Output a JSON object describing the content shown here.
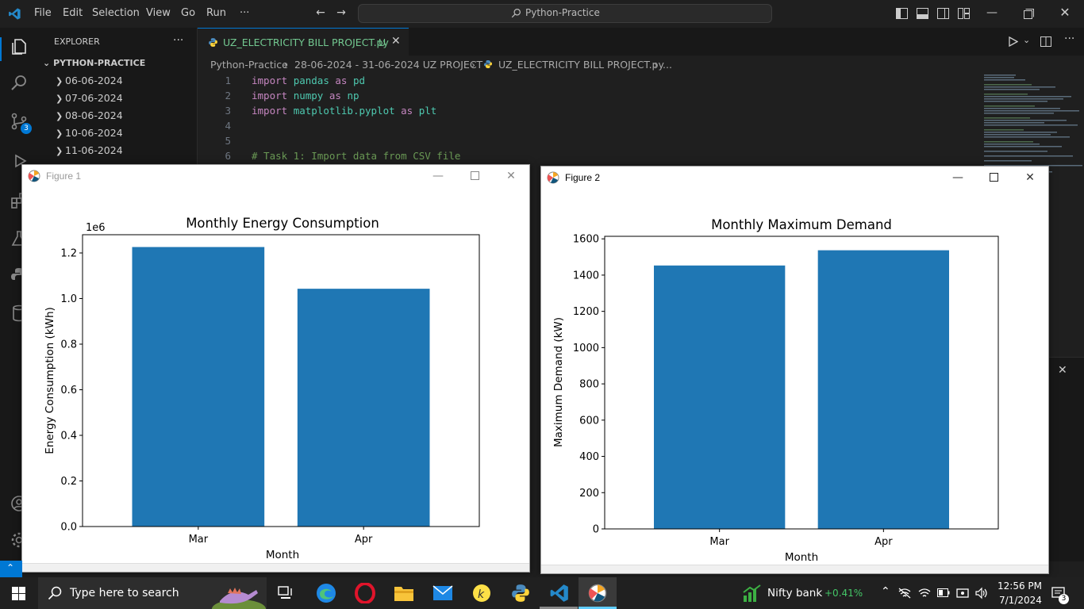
{
  "titlebar": {
    "menus": [
      "File",
      "Edit",
      "Selection",
      "View",
      "Go",
      "Run",
      "···"
    ],
    "search_text": "Python-Practice"
  },
  "activity": {
    "scm_badge": "3"
  },
  "sidebar": {
    "header": "EXPLORER",
    "more": "···",
    "folder": "PYTHON-PRACTICE",
    "items": [
      {
        "label": "06-06-2024"
      },
      {
        "label": "07-06-2024"
      },
      {
        "label": "08-06-2024"
      },
      {
        "label": "10-06-2024"
      },
      {
        "label": "11-06-2024"
      }
    ]
  },
  "editor": {
    "tab_label": "UZ_ELECTRICITY BILL PROJECT.py",
    "tab_status": "U",
    "breadcrumb": {
      "root": "Python-Practice",
      "folder": "28-06-2024 - 31-06-2024 UZ PROJECT",
      "file": "UZ_ELECTRICITY BILL PROJECT.py",
      "more": "..."
    },
    "lines": [
      {
        "n": "1",
        "kw1": "import",
        "mod": "pandas",
        "kw2": "as",
        "alias": "pd"
      },
      {
        "n": "2",
        "kw1": "import",
        "mod": "numpy",
        "kw2": "as",
        "alias": "np"
      },
      {
        "n": "3",
        "kw1": "import",
        "mod": "matplotlib.pyplot",
        "kw2": "as",
        "alias": "plt"
      },
      {
        "n": "4"
      },
      {
        "n": "5"
      },
      {
        "n": "6",
        "comment": "# Task 1: Import data from CSV file"
      }
    ]
  },
  "figure1": {
    "title": "Figure 1",
    "chart_data": {
      "type": "bar",
      "title": "Monthly Energy Consumption",
      "xlabel": "Month",
      "ylabel": "Energy Consumption (kWh)",
      "offset_label": "1e6",
      "categories": [
        "Mar",
        "Apr"
      ],
      "values": [
        1.226,
        1.043
      ],
      "ylim": [
        0,
        1.28
      ],
      "yticks": [
        0.0,
        0.2,
        0.4,
        0.6,
        0.8,
        1.0,
        1.2
      ],
      "ytick_labels": [
        "0.0",
        "0.2",
        "0.4",
        "0.6",
        "0.8",
        "1.0",
        "1.2"
      ],
      "color": "#1f77b4"
    }
  },
  "figure2": {
    "title": "Figure 2",
    "chart_data": {
      "type": "bar",
      "title": "Monthly Maximum Demand",
      "xlabel": "Month",
      "ylabel": "Maximum Demand (kW)",
      "categories": [
        "Mar",
        "Apr"
      ],
      "values": [
        1453,
        1537
      ],
      "ylim": [
        0,
        1614
      ],
      "yticks": [
        0,
        200,
        400,
        600,
        800,
        1000,
        1200,
        1400,
        1600
      ],
      "ytick_labels": [
        "0",
        "200",
        "400",
        "600",
        "800",
        "1000",
        "1200",
        "1400",
        "1600"
      ],
      "color": "#1f77b4"
    }
  },
  "taskbar": {
    "search_placeholder": "Type here to search",
    "stock_name": "Nifty bank",
    "stock_change": "+0.41%",
    "time": "12:56 PM",
    "date": "7/1/2024",
    "notif_count": "3"
  }
}
